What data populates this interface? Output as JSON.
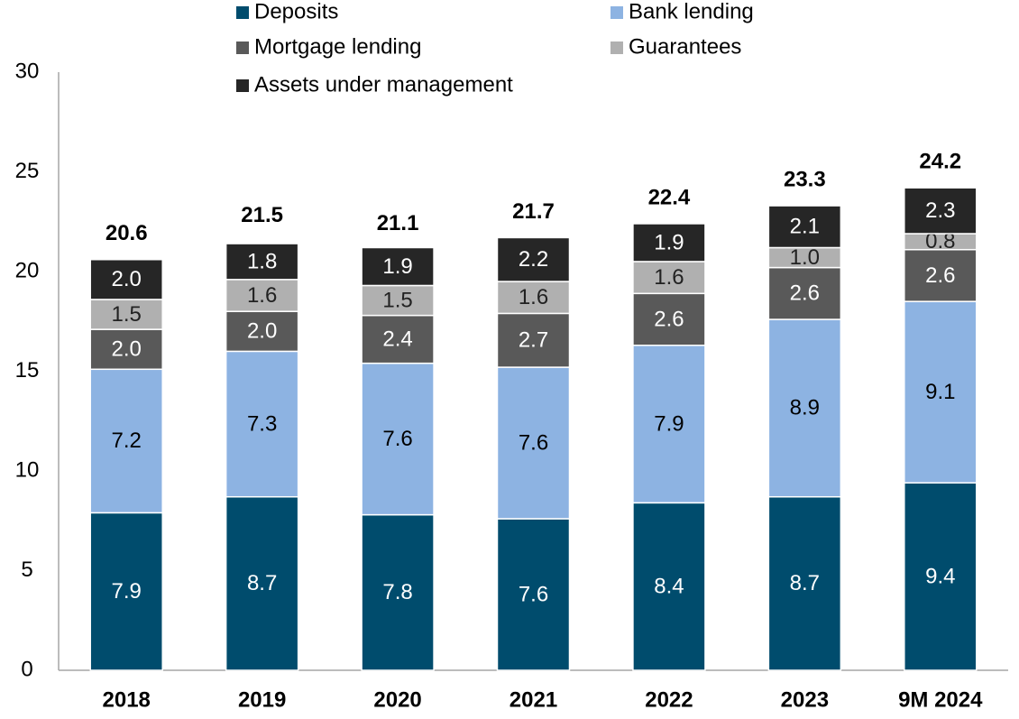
{
  "chart_data": {
    "type": "stacked_bar",
    "categories": [
      "2018",
      "2019",
      "2020",
      "2021",
      "2022",
      "2023",
      "9M 2024"
    ],
    "series": [
      {
        "name": "Deposits",
        "color": "#004c6d",
        "values": [
          7.9,
          8.7,
          7.8,
          7.6,
          8.4,
          8.7,
          9.4
        ]
      },
      {
        "name": "Bank lending",
        "color": "#8db3e2",
        "values": [
          7.2,
          7.3,
          7.6,
          7.6,
          7.9,
          8.9,
          9.1
        ]
      },
      {
        "name": "Mortgage lending",
        "color": "#595959",
        "values": [
          2.0,
          2.0,
          2.4,
          2.7,
          2.6,
          2.6,
          2.6
        ],
        "value_labels": [
          "2.0",
          "2.0",
          "2.4",
          "2.7",
          "2.6",
          "2.6",
          "2.6"
        ]
      },
      {
        "name": "Guarantees",
        "color": "#b0b0b0",
        "values": [
          1.5,
          1.6,
          1.5,
          1.6,
          1.6,
          1.0,
          0.8
        ],
        "value_labels": [
          "1.5",
          "1.6",
          "1.5",
          "1.6",
          "1.6",
          "1.0",
          "0.8"
        ]
      },
      {
        "name": "Assets under management",
        "color": "#262626",
        "values": [
          2.0,
          1.8,
          1.9,
          2.2,
          1.9,
          2.1,
          2.3
        ],
        "value_labels": [
          "2.0",
          "1.8",
          "1.9",
          "2.2",
          "1.9",
          "2.1",
          "2.3"
        ]
      }
    ],
    "totals": [
      20.6,
      21.5,
      21.1,
      21.7,
      22.4,
      23.3,
      24.2
    ],
    "ylim": [
      0,
      30
    ],
    "yticks": [
      0,
      5,
      10,
      15,
      20,
      25,
      30
    ],
    "grid": false
  }
}
